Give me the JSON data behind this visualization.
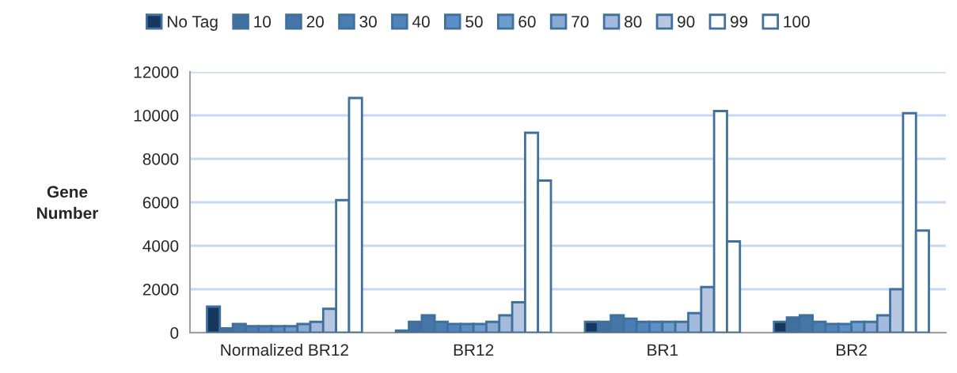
{
  "chart_data": {
    "type": "bar",
    "ylabel": "Gene Number",
    "categories": [
      "Normalized BR12",
      "BR12",
      "BR1",
      "BR2"
    ],
    "series": [
      {
        "name": "No Tag",
        "color": "#17375e",
        "values": [
          1200,
          100,
          500,
          500
        ]
      },
      {
        "name": "10",
        "color": "#416f9f",
        "values": [
          200,
          500,
          500,
          700
        ]
      },
      {
        "name": "20",
        "color": "#4675a8",
        "values": [
          400,
          800,
          800,
          800
        ]
      },
      {
        "name": "30",
        "color": "#4a7db2",
        "values": [
          300,
          500,
          650,
          500
        ]
      },
      {
        "name": "40",
        "color": "#5184bb",
        "values": [
          300,
          400,
          500,
          400
        ]
      },
      {
        "name": "50",
        "color": "#5a8fc8",
        "values": [
          300,
          400,
          500,
          400
        ]
      },
      {
        "name": "60",
        "color": "#6d9ccf",
        "values": [
          300,
          400,
          500,
          500
        ]
      },
      {
        "name": "70",
        "color": "#8aaad4",
        "values": [
          400,
          500,
          500,
          500
        ]
      },
      {
        "name": "80",
        "color": "#a4badd",
        "values": [
          500,
          800,
          900,
          800
        ]
      },
      {
        "name": "90",
        "color": "#b8c7e1",
        "values": [
          1100,
          1400,
          2100,
          2000
        ]
      },
      {
        "name": "99",
        "color": "#ffffff",
        "values": [
          6100,
          9200,
          10200,
          10100
        ]
      },
      {
        "name": "100",
        "color": "#ffffff",
        "values": [
          10800,
          7000,
          4200,
          4700
        ]
      }
    ],
    "ylim": [
      0,
      12000
    ],
    "yticks": [
      0,
      2000,
      4000,
      6000,
      8000,
      10000,
      12000
    ],
    "grid": "y",
    "legend": "top"
  }
}
